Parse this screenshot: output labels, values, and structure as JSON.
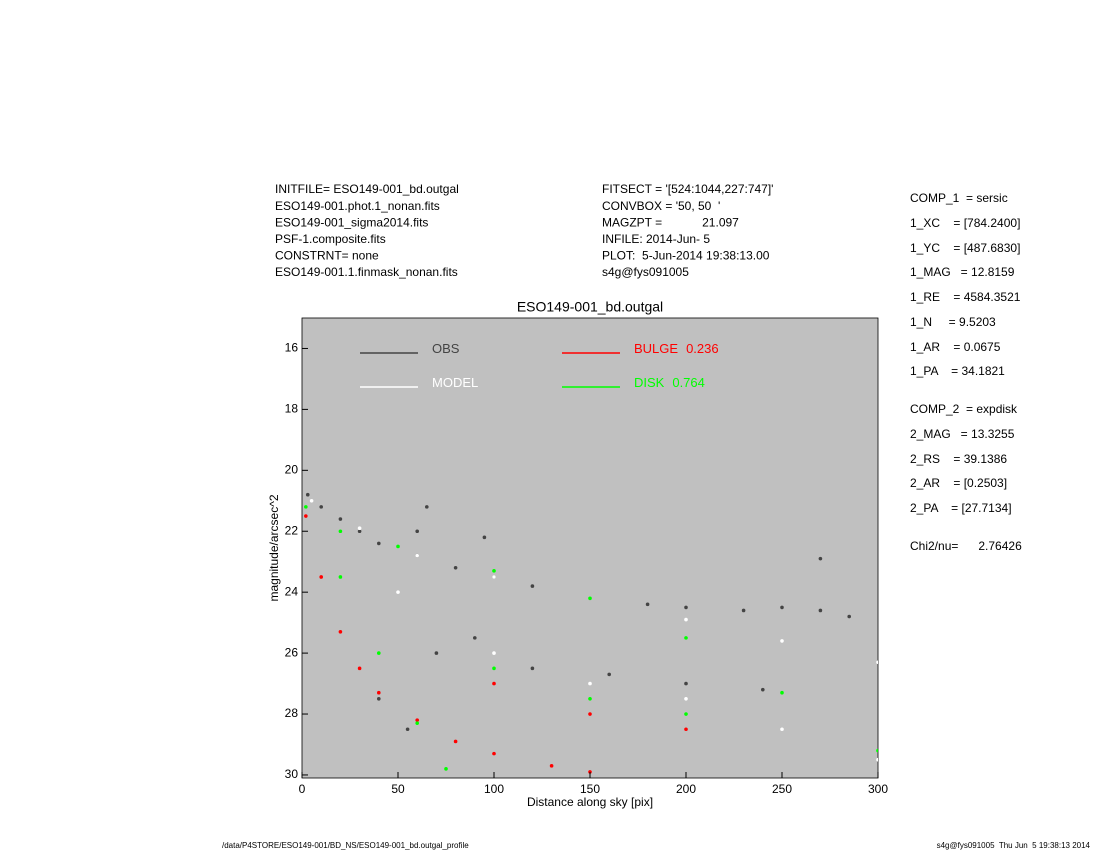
{
  "header_left": [
    "INITFILE= ESO149-001_bd.outgal",
    "ESO149-001.phot.1_nonan.fits",
    "ESO149-001_sigma2014.fits",
    "PSF-1.composite.fits",
    "CONSTRNT= none",
    "ESO149-001.1.finmask_nonan.fits"
  ],
  "header_middle": [
    "FITSECT = '[524:1044,227:747]'",
    "CONVBOX = '50, 50  '",
    "MAGZPT =            21.097",
    "INFILE: 2014-Jun- 5",
    "PLOT:  5-Jun-2014 19:38:13.00",
    "s4g@fys091005"
  ],
  "params": [
    "COMP_1  = sersic",
    "1_XC    = [784.2400]",
    "1_YC    = [487.6830]",
    "1_MAG   = 12.8159",
    "1_RE    = 4584.3521",
    "1_N     = 9.5203",
    "1_AR    = 0.0675",
    "1_PA    = 34.1821",
    "COMP_2  = expdisk",
    "2_MAG   = 13.3255",
    "2_RS    = 39.1386",
    "2_AR    = [0.2503]",
    "2_PA    = [27.7134]",
    "Chi2/nu=      2.76426"
  ],
  "footer_left": "/data/P4STORE/ESO149-001/BD_NS/ESO149-001_bd.outgal_profile",
  "footer_right": "s4g@fys091005  Thu Jun  5 19:38:13 2014",
  "chart_data": {
    "type": "scatter",
    "title": "ESO149-001_bd.outgal",
    "x_label": "Distance along sky [pix]",
    "y_label": "magnitude/arcsec^2",
    "xlim": [
      0,
      300
    ],
    "ylim": [
      15,
      30.1
    ],
    "y_inverted": true,
    "xticks": [
      0,
      50,
      100,
      150,
      200,
      250,
      300
    ],
    "yticks": [
      16,
      18,
      20,
      22,
      24,
      26,
      28,
      30
    ],
    "background": "#c0c0c0",
    "series": [
      {
        "name": "OBS",
        "color": "#444444",
        "x": [
          3,
          10,
          20,
          30,
          40,
          60,
          80,
          100,
          120,
          150,
          180,
          200,
          230,
          250,
          270,
          285,
          40,
          55,
          70,
          90,
          120,
          160,
          200,
          240,
          60,
          95,
          65,
          270
        ],
        "values": [
          20.8,
          21.2,
          21.6,
          22,
          22.4,
          22.8,
          23.2,
          23.5,
          23.8,
          24.2,
          24.4,
          24.5,
          24.6,
          24.5,
          24.6,
          24.8,
          27.5,
          28.5,
          26,
          25.5,
          26.5,
          26.7,
          27,
          27.2,
          22,
          22.2,
          21.2,
          22.9
        ]
      },
      {
        "name": "MODEL",
        "color": "#ffffff",
        "x": [
          5,
          30,
          60,
          100,
          150,
          200,
          250,
          300,
          50,
          100,
          150,
          200,
          250,
          300
        ],
        "values": [
          21,
          21.9,
          22.8,
          23.5,
          24.2,
          24.9,
          25.6,
          26.3,
          24,
          26,
          27,
          27.5,
          28.5,
          29.5
        ]
      },
      {
        "name": "BULGE",
        "fraction": 0.236,
        "color": "#ff0000",
        "x": [
          2,
          10,
          20,
          30,
          40,
          60,
          80,
          100,
          130,
          150,
          100,
          150,
          200
        ],
        "values": [
          21.5,
          23.5,
          25.3,
          26.5,
          27.3,
          28.2,
          28.9,
          29.3,
          29.7,
          29.9,
          27,
          28,
          28.5
        ]
      },
      {
        "name": "DISK",
        "fraction": 0.764,
        "color": "#00ff00",
        "x": [
          2,
          20,
          50,
          100,
          150,
          200,
          250,
          300,
          20,
          40,
          60,
          75,
          100,
          150,
          200
        ],
        "values": [
          21.2,
          22,
          22.5,
          23.3,
          24.2,
          25.5,
          27.3,
          29.2,
          23.5,
          26,
          28.3,
          29.8,
          26.5,
          27.5,
          28
        ]
      }
    ]
  }
}
